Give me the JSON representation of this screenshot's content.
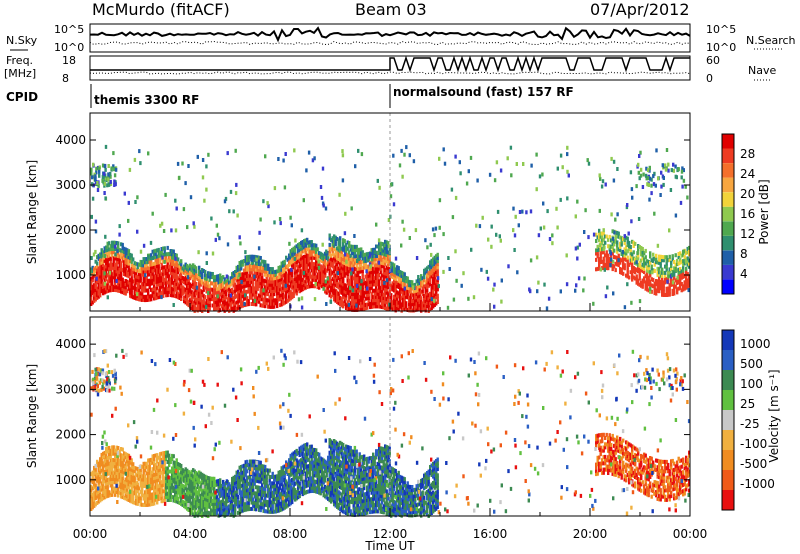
{
  "header": {
    "station": "McMurdo (fitACF)",
    "beam": "Beam 03",
    "date": "07/Apr/2012"
  },
  "noise_panel": {
    "left_label": "N.Sky",
    "right_label": "N.Search",
    "left_ticks": [
      "10^5",
      "10^0"
    ],
    "right_ticks": [
      "10^5",
      "10^0"
    ]
  },
  "freq_panel": {
    "left_label_line1": "Freq.",
    "left_label_line2": "[MHz]",
    "right_label": "Nave",
    "left_ticks": [
      "18",
      "8"
    ],
    "right_ticks": [
      "60",
      "0"
    ]
  },
  "cpid": {
    "label": "CPID",
    "modes": [
      "themis 3300 RF",
      "normalsound (fast) 157 RF"
    ],
    "switch_hour": 12
  },
  "chart_data": [
    {
      "type": "heatmap",
      "name": "power",
      "ylabel": "Slant Range [km]",
      "xlabel": "",
      "xlim_hours": [
        0,
        24
      ],
      "ylim_km": [
        200,
        4600
      ],
      "yticks": [
        "1000",
        "2000",
        "3000",
        "4000"
      ],
      "colorbar_label": "Power [dB]",
      "colorbar_ticks": [
        "4",
        "8",
        "12",
        "16",
        "20",
        "24",
        "28"
      ],
      "colorbar_colors": [
        "#0000ff",
        "#3a3ad0",
        "#1f5fa8",
        "#2f8f6f",
        "#4fa84f",
        "#8fc94f",
        "#f2d33a",
        "#f7a640",
        "#f46f2b",
        "#ee3b22",
        "#e00000"
      ],
      "colorbar_range": [
        0,
        30
      ]
    },
    {
      "type": "heatmap",
      "name": "velocity",
      "ylabel": "Slant Range [km]",
      "xlabel": "Time UT",
      "xlim_hours": [
        0,
        24
      ],
      "ylim_km": [
        200,
        4600
      ],
      "yticks": [
        "1000",
        "2000",
        "3000",
        "4000"
      ],
      "xticks": [
        "00:00",
        "04:00",
        "08:00",
        "12:00",
        "16:00",
        "20:00",
        "00:00"
      ],
      "colorbar_label": "Velocity [m s⁻¹]",
      "colorbar_ticks": [
        "1000",
        "500",
        "100",
        "25",
        "-25",
        "-100",
        "-500",
        "-1000"
      ],
      "colorbar_colors": [
        "#1438b8",
        "#2a5fc4",
        "#3c8a52",
        "#60c040",
        "#c8c8c8",
        "#f0b040",
        "#f08c20",
        "#f05a18",
        "#e81010"
      ]
    }
  ]
}
